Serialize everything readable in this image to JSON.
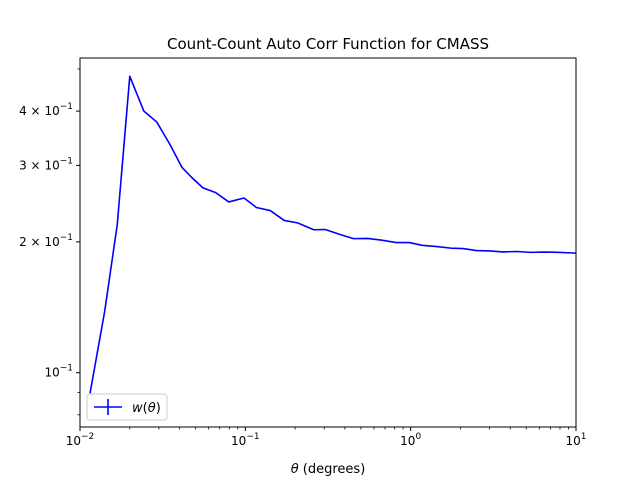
{
  "chart_data": {
    "type": "line",
    "title": "Count-Count Auto Corr Function for CMASS",
    "xlabel_symbol": "θ",
    "xlabel_rest": " (degrees)",
    "ylabel": "",
    "xscale": "log",
    "yscale": "log",
    "xlim": [
      0.01,
      10
    ],
    "ylim": [
      0.075,
      0.53
    ],
    "grid": false,
    "legend_position": "lower-left",
    "x_major_ticks": [
      {
        "value": 0.01,
        "base": "10",
        "exp": "−2"
      },
      {
        "value": 0.1,
        "base": "10",
        "exp": "−1"
      },
      {
        "value": 1,
        "base": "10",
        "exp": "0"
      },
      {
        "value": 10,
        "base": "10",
        "exp": "1"
      }
    ],
    "y_major_ticks": [
      {
        "value": 0.1,
        "mant": "",
        "base": "10",
        "exp": "−1"
      },
      {
        "value": 0.2,
        "mant": "2 × ",
        "base": "10",
        "exp": "−1"
      },
      {
        "value": 0.3,
        "mant": "3 × ",
        "base": "10",
        "exp": "−1"
      },
      {
        "value": 0.4,
        "mant": "4 × ",
        "base": "10",
        "exp": "−1"
      }
    ],
    "y_minor_ticks": [
      0.08,
      0.09,
      0.5
    ],
    "series": [
      {
        "name_func": "w",
        "name_arg": "θ",
        "color": "#0000ff",
        "x": [
          0.0115,
          0.0141,
          0.0168,
          0.02,
          0.0243,
          0.0291,
          0.0348,
          0.0414,
          0.047,
          0.0554,
          0.0662,
          0.0794,
          0.0982,
          0.1167,
          0.1415,
          0.1719,
          0.2069,
          0.2594,
          0.3045,
          0.372,
          0.4505,
          0.5479,
          0.6613,
          0.8181,
          0.9806,
          1.1733,
          1.4391,
          1.7498,
          2.0796,
          2.4942,
          3.0057,
          3.6244,
          4.4133,
          5.2999,
          6.3768,
          7.6983,
          9.2471,
          10.0
        ],
        "y": [
          0.0897,
          0.1384,
          0.2192,
          0.481,
          0.4003,
          0.3777,
          0.3365,
          0.2967,
          0.2823,
          0.2663,
          0.2597,
          0.2472,
          0.2524,
          0.24,
          0.2361,
          0.2241,
          0.2212,
          0.2133,
          0.2136,
          0.2082,
          0.2035,
          0.2037,
          0.202,
          0.1993,
          0.1993,
          0.1964,
          0.1951,
          0.1935,
          0.1931,
          0.191,
          0.1907,
          0.1897,
          0.1901,
          0.1892,
          0.1895,
          0.1893,
          0.1887,
          0.1884
        ]
      }
    ]
  }
}
